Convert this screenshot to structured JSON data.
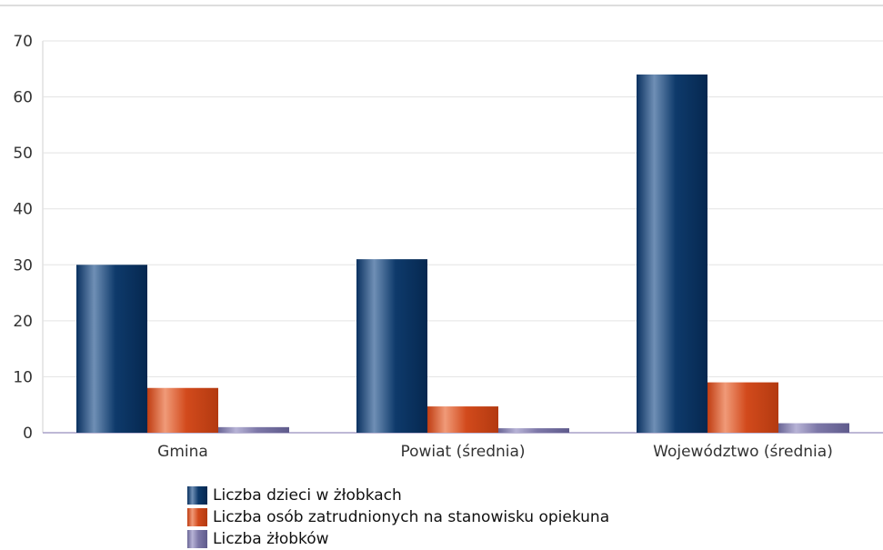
{
  "chart_data": {
    "type": "bar",
    "categories": [
      "Gmina",
      "Powiat (średnia)",
      "Województwo (średnia)"
    ],
    "series": [
      {
        "name": "Liczba dzieci w żłobkach",
        "values": [
          30,
          31,
          64
        ],
        "color": "#0e3a6b"
      },
      {
        "name": "Liczba osób zatrudnionych na stanowisku opiekuna",
        "values": [
          8,
          4.7,
          9
        ],
        "color": "#d24a1c"
      },
      {
        "name": "Liczba żłobków",
        "values": [
          1,
          0.8,
          1.7
        ],
        "color": "#7d78a8"
      }
    ],
    "yticks": [
      "0",
      "10",
      "20",
      "30",
      "40",
      "50",
      "60",
      "70"
    ],
    "ylim": [
      0,
      70
    ],
    "grid": true,
    "legend_position": "bottom"
  }
}
